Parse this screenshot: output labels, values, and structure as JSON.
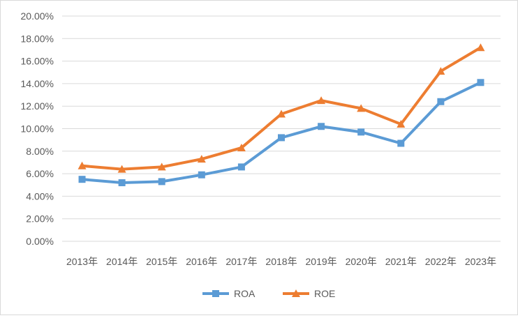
{
  "chart_data": {
    "type": "line",
    "title": "",
    "xlabel": "",
    "ylabel": "",
    "categories": [
      "2013年",
      "2014年",
      "2015年",
      "2016年",
      "2017年",
      "2018年",
      "2019年",
      "2020年",
      "2021年",
      "2022年",
      "2023年"
    ],
    "series": [
      {
        "name": "ROA",
        "color": "#5B9BD5",
        "marker": "square",
        "values": [
          5.5,
          5.2,
          5.3,
          5.9,
          6.6,
          9.2,
          10.2,
          9.7,
          8.7,
          12.4,
          14.1
        ]
      },
      {
        "name": "ROE",
        "color": "#ED7D31",
        "marker": "triangle",
        "values": [
          6.7,
          6.4,
          6.6,
          7.3,
          8.3,
          11.3,
          12.5,
          11.8,
          10.4,
          15.1,
          17.2
        ]
      }
    ],
    "ylim": [
      0,
      20
    ],
    "yticks": [
      "0.00%",
      "2.00%",
      "4.00%",
      "6.00%",
      "8.00%",
      "10.00%",
      "12.00%",
      "14.00%",
      "16.00%",
      "18.00%",
      "20.00%"
    ],
    "grid": true,
    "gridColor": "#d9d9d9",
    "legend": "bottom"
  }
}
